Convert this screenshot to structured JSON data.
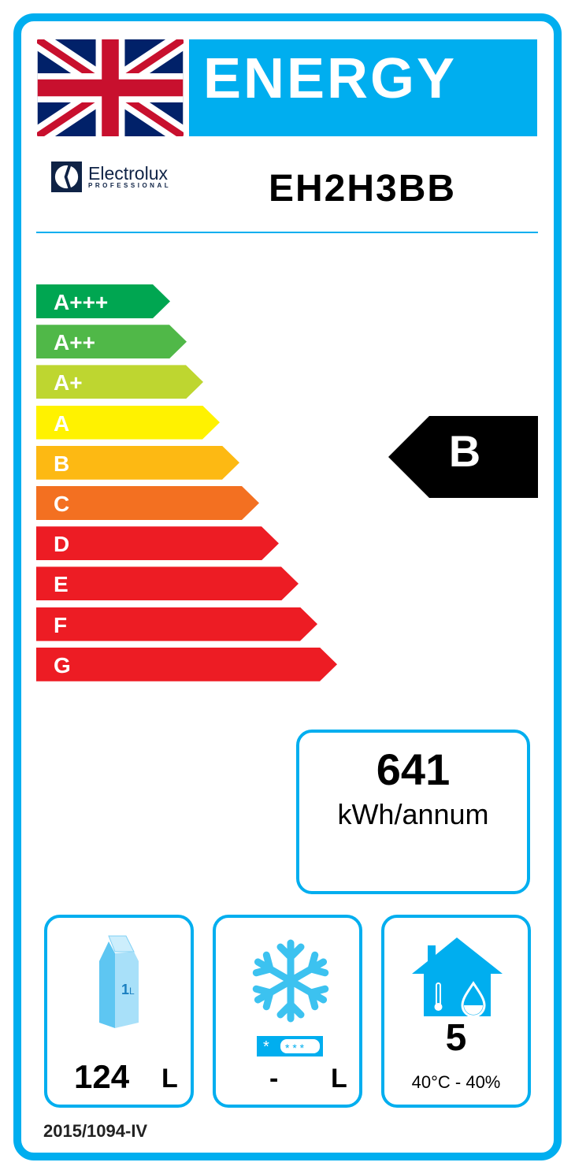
{
  "header": {
    "title": "ENERGY",
    "brand": "Electrolux",
    "brand_sub": "PROFESSIONAL",
    "model": "EH2H3BB"
  },
  "scale": [
    {
      "label": "A+++",
      "color": "#00a651"
    },
    {
      "label": "A++",
      "color": "#50b848"
    },
    {
      "label": "A+",
      "color": "#bed630"
    },
    {
      "label": "A",
      "color": "#fff200"
    },
    {
      "label": "B",
      "color": "#fdb913"
    },
    {
      "label": "C",
      "color": "#f37021"
    },
    {
      "label": "D",
      "color": "#ed1c24"
    },
    {
      "label": "E",
      "color": "#ed1c24"
    },
    {
      "label": "F",
      "color": "#ed1c24"
    },
    {
      "label": "G",
      "color": "#ed1c24"
    }
  ],
  "rating": "B",
  "consumption": {
    "value": "641",
    "unit": "kWh/annum"
  },
  "chill": {
    "value": "124",
    "unit": "L",
    "carton_label": "1L"
  },
  "frozen": {
    "value": "-",
    "unit": "L"
  },
  "climate": {
    "class": "5",
    "conditions": "40°C - 40%"
  },
  "regulation": "2015/1094-IV",
  "colors": {
    "accent": "#00aeef",
    "rating_arrow": "#000000"
  }
}
